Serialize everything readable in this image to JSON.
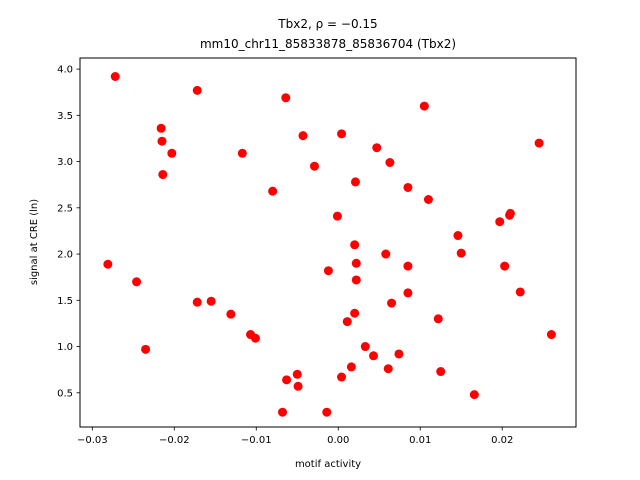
{
  "chart_data": {
    "type": "scatter",
    "title_line1": "Tbx2, ρ = −0.15",
    "title_line2": "mm10_chr11_85833878_85836704 (Tbx2)",
    "xlabel": "motif activity",
    "ylabel": "signal at CRE (ln)",
    "xlim": [
      -0.0315,
      0.029
    ],
    "ylim": [
      0.13,
      4.12
    ],
    "x_ticks": [
      -0.03,
      -0.02,
      -0.01,
      0.0,
      0.01,
      0.02
    ],
    "x_tick_labels": [
      "−0.03",
      "−0.02",
      "−0.01",
      "0.00",
      "0.01",
      "0.02"
    ],
    "y_ticks": [
      0.5,
      1.0,
      1.5,
      2.0,
      2.5,
      3.0,
      3.5,
      4.0
    ],
    "y_tick_labels": [
      "0.5",
      "1.0",
      "1.5",
      "2.0",
      "2.5",
      "3.0",
      "3.5",
      "4.0"
    ],
    "grid": false,
    "marker_color": "#ff0000",
    "points": [
      {
        "x": -0.0272,
        "y": 3.92
      },
      {
        "x": -0.0172,
        "y": 3.77
      },
      {
        "x": -0.0064,
        "y": 3.69
      },
      {
        "x": 0.0105,
        "y": 3.6
      },
      {
        "x": -0.0216,
        "y": 3.36
      },
      {
        "x": -0.0043,
        "y": 3.28
      },
      {
        "x": 0.0004,
        "y": 3.3
      },
      {
        "x": -0.0215,
        "y": 3.22
      },
      {
        "x": 0.0047,
        "y": 3.15
      },
      {
        "x": 0.0245,
        "y": 3.2
      },
      {
        "x": -0.0203,
        "y": 3.09
      },
      {
        "x": -0.0117,
        "y": 3.09
      },
      {
        "x": 0.0063,
        "y": 2.99
      },
      {
        "x": -0.0029,
        "y": 2.95
      },
      {
        "x": -0.0214,
        "y": 2.86
      },
      {
        "x": 0.0021,
        "y": 2.78
      },
      {
        "x": -0.008,
        "y": 2.68
      },
      {
        "x": 0.0085,
        "y": 2.72
      },
      {
        "x": 0.011,
        "y": 2.59
      },
      {
        "x": 0.021,
        "y": 2.44
      },
      {
        "x": -0.0001,
        "y": 2.41
      },
      {
        "x": 0.0209,
        "y": 2.42
      },
      {
        "x": 0.0197,
        "y": 2.35
      },
      {
        "x": 0.0146,
        "y": 2.2
      },
      {
        "x": 0.002,
        "y": 2.1
      },
      {
        "x": 0.015,
        "y": 2.01
      },
      {
        "x": 0.0058,
        "y": 2.0
      },
      {
        "x": 0.0022,
        "y": 1.9
      },
      {
        "x": -0.0281,
        "y": 1.89
      },
      {
        "x": 0.0085,
        "y": 1.87
      },
      {
        "x": 0.0203,
        "y": 1.87
      },
      {
        "x": -0.0012,
        "y": 1.82
      },
      {
        "x": 0.0022,
        "y": 1.72
      },
      {
        "x": -0.0246,
        "y": 1.7
      },
      {
        "x": 0.0222,
        "y": 1.59
      },
      {
        "x": 0.0085,
        "y": 1.58
      },
      {
        "x": -0.0155,
        "y": 1.49
      },
      {
        "x": -0.0172,
        "y": 1.48
      },
      {
        "x": 0.0065,
        "y": 1.47
      },
      {
        "x": 0.002,
        "y": 1.36
      },
      {
        "x": -0.0131,
        "y": 1.35
      },
      {
        "x": 0.0122,
        "y": 1.3
      },
      {
        "x": 0.0011,
        "y": 1.27
      },
      {
        "x": -0.0107,
        "y": 1.13
      },
      {
        "x": 0.026,
        "y": 1.13
      },
      {
        "x": -0.0101,
        "y": 1.09
      },
      {
        "x": 0.0033,
        "y": 1.0
      },
      {
        "x": -0.0235,
        "y": 0.97
      },
      {
        "x": 0.0074,
        "y": 0.92
      },
      {
        "x": 0.0043,
        "y": 0.9
      },
      {
        "x": 0.0016,
        "y": 0.78
      },
      {
        "x": 0.0061,
        "y": 0.76
      },
      {
        "x": 0.0125,
        "y": 0.73
      },
      {
        "x": -0.005,
        "y": 0.7
      },
      {
        "x": 0.0004,
        "y": 0.67
      },
      {
        "x": -0.0063,
        "y": 0.64
      },
      {
        "x": -0.0049,
        "y": 0.57
      },
      {
        "x": 0.0166,
        "y": 0.48
      },
      {
        "x": -0.0068,
        "y": 0.29
      },
      {
        "x": -0.0014,
        "y": 0.29
      }
    ]
  }
}
